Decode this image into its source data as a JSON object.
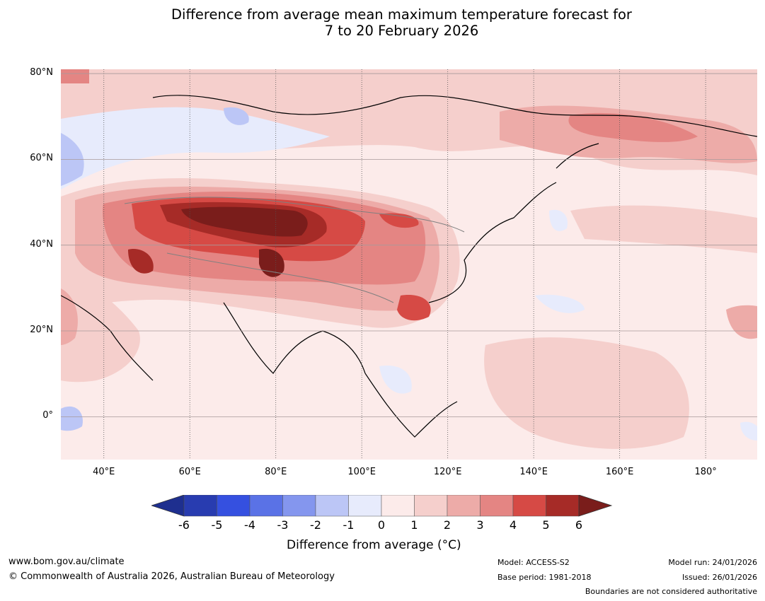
{
  "title": {
    "line1": "Difference from average mean maximum temperature forecast for",
    "line2": "7 to 20 February 2026"
  },
  "map": {
    "lat_labels": [
      "80°N",
      "60°N",
      "40°N",
      "20°N",
      "0°"
    ],
    "lon_labels": [
      "40°E",
      "60°E",
      "80°E",
      "100°E",
      "120°E",
      "140°E",
      "160°E",
      "180°"
    ],
    "lat_values": [
      80,
      60,
      40,
      20,
      0
    ],
    "lon_values": [
      40,
      60,
      80,
      100,
      120,
      140,
      160,
      180
    ]
  },
  "colorbar": {
    "ticks": [
      "-6",
      "-5",
      "-4",
      "-3",
      "-2",
      "-1",
      "0",
      "1",
      "2",
      "3",
      "4",
      "5",
      "6"
    ],
    "colors": [
      "#1e2f8f",
      "#283cb0",
      "#3550e0",
      "#5a72e6",
      "#8496ee",
      "#bcc6f6",
      "#e7ebfc",
      "#fcebea",
      "#f5cfcc",
      "#edaba8",
      "#e48583",
      "#d64a45",
      "#a62b27",
      "#7a1d1b"
    ],
    "label": "Difference from average (°C)"
  },
  "footer": {
    "website": "www.bom.gov.au/climate",
    "copyright": "© Commonwealth of Australia 2026, Australian Bureau of Meteorology",
    "model": "Model: ACCESS-S2",
    "base_period": "Base period: 1981-2018",
    "model_run": "Model run: 24/01/2026",
    "issued": "Issued: 26/01/2026",
    "boundaries_note": "Boundaries are not considered authoritative"
  }
}
